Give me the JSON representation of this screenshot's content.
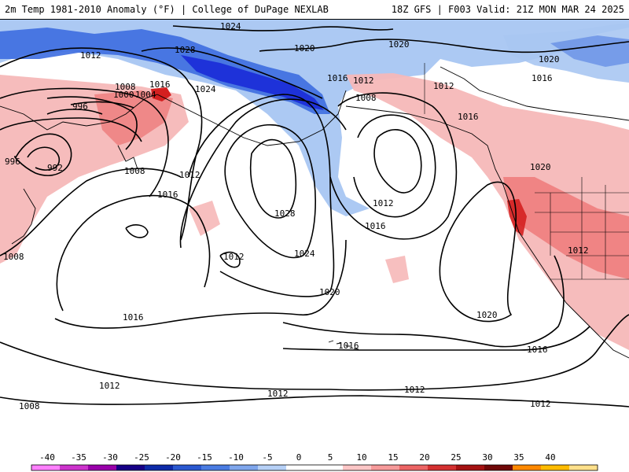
{
  "header": {
    "title_left": "2m Temp 1981-2010 Anomaly (°F) | College of DuPage NEXLAB",
    "title_right": "18Z GFS | F003 Valid: 21Z MON MAR 24 2025"
  },
  "colors": {
    "cold_extreme": "#e020e0",
    "cold_strong": "#1a2bd8",
    "cold_mid": "#3d6de0",
    "cold_light": "#a8c6f2",
    "warm_light": "#f6b8b8",
    "warm_mid": "#ee7a7a",
    "warm_strong": "#d42020",
    "warm_extreme": "#8a1010"
  },
  "isobar_labels": [
    {
      "text": "1024"
    },
    {
      "text": "1028"
    },
    {
      "text": "1020"
    },
    {
      "text": "1020"
    },
    {
      "text": "1020"
    },
    {
      "text": "1012"
    },
    {
      "text": "1016"
    },
    {
      "text": "1012"
    },
    {
      "text": "1016"
    },
    {
      "text": "1008"
    },
    {
      "text": "1012"
    },
    {
      "text": "1008"
    },
    {
      "text": "1016"
    },
    {
      "text": "1004"
    },
    {
      "text": "1000"
    },
    {
      "text": "1024"
    },
    {
      "text": "996"
    },
    {
      "text": "996"
    },
    {
      "text": "992"
    },
    {
      "text": "1008"
    },
    {
      "text": "1012"
    },
    {
      "text": "1016"
    },
    {
      "text": "1028"
    },
    {
      "text": "1012"
    },
    {
      "text": "1016"
    },
    {
      "text": "1016"
    },
    {
      "text": "1020"
    },
    {
      "text": "1012"
    },
    {
      "text": "1024"
    },
    {
      "text": "1008"
    },
    {
      "text": "1012"
    },
    {
      "text": "1020"
    },
    {
      "text": "1020"
    },
    {
      "text": "1016"
    },
    {
      "text": "1016"
    },
    {
      "text": "1016"
    },
    {
      "text": "1012"
    },
    {
      "text": "1012"
    },
    {
      "text": "1012"
    },
    {
      "text": "1012"
    },
    {
      "text": "1008"
    }
  ],
  "colorbar": {
    "ticks": [
      "-40",
      "-35",
      "-30",
      "-25",
      "-20",
      "-15",
      "-10",
      "-5",
      "0",
      "5",
      "10",
      "15",
      "20",
      "25",
      "30",
      "35",
      "40"
    ],
    "segment_colors": [
      "#ff80ff",
      "#cc33cc",
      "#9900aa",
      "#160086",
      "#0d2aa8",
      "#2a58d0",
      "#4a7ce2",
      "#7fa6ec",
      "#b6d0f6",
      "#ffffff",
      "#ffffff",
      "#fcc6c6",
      "#f69a9a",
      "#ec6464",
      "#d43030",
      "#a51212",
      "#700808",
      "#ff8800",
      "#ffbb00",
      "#ffe08a"
    ]
  }
}
